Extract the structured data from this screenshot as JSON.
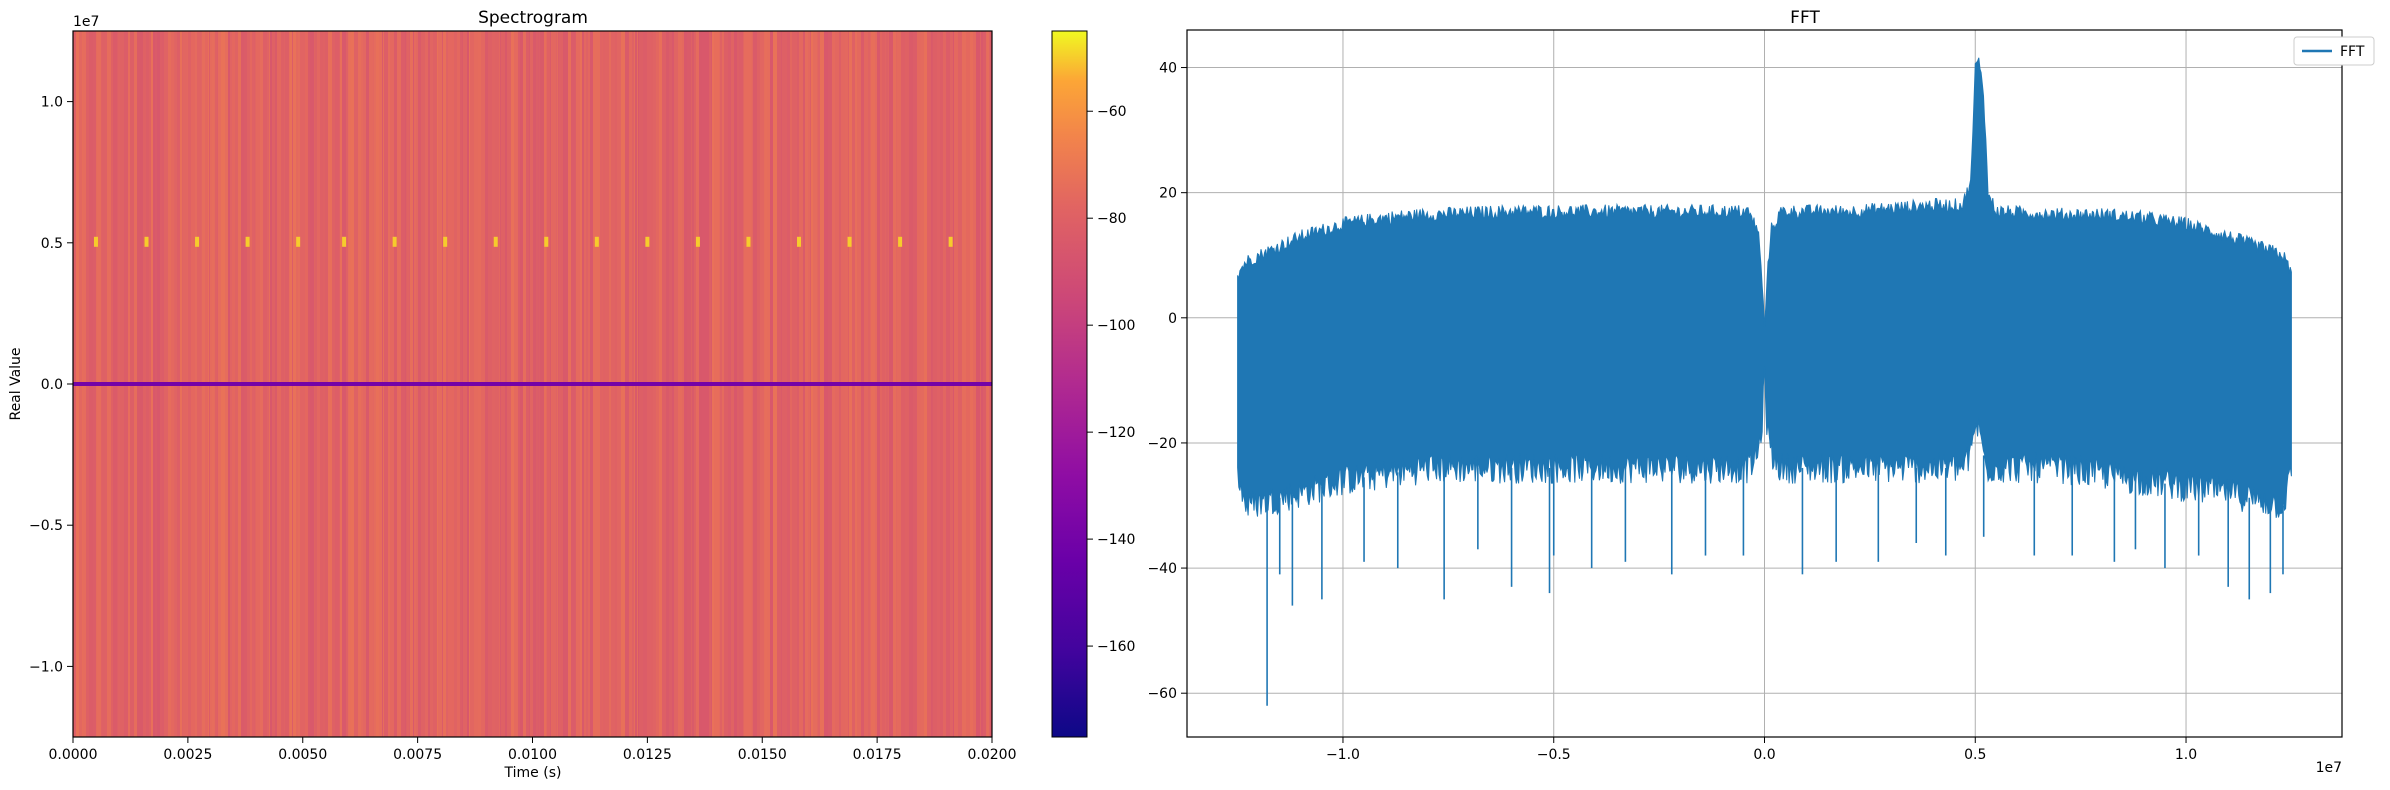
{
  "chart_data": [
    {
      "type": "heatmap",
      "title": "Spectrogram",
      "xlabel": "Time (s)",
      "ylabel": "Real Value",
      "xlim": [
        0.0,
        0.02
      ],
      "ylim": [
        -12500000,
        12500000
      ],
      "x_ticks": [
        0.0,
        0.0025,
        0.005,
        0.0075,
        0.01,
        0.0125,
        0.015,
        0.0175,
        0.02
      ],
      "x_tick_labels": [
        "0.0000",
        "0.0025",
        "0.0050",
        "0.0075",
        "0.0100",
        "0.0125",
        "0.0150",
        "0.0175",
        "0.0200"
      ],
      "y_ticks": [
        -10000000,
        -5000000,
        0,
        5000000,
        10000000
      ],
      "y_tick_labels": [
        "−1.0",
        "−0.5",
        "0.0",
        "0.5",
        "1.0"
      ],
      "y_offset_label": "1e7",
      "grid": false,
      "colormap": "plasma",
      "colorbar": {
        "range": [
          -177,
          -45
        ],
        "ticks": [
          -60,
          -80,
          -100,
          -120,
          -140,
          -160
        ],
        "tick_labels": [
          "−60",
          "−80",
          "−100",
          "−120",
          "−140",
          "−160"
        ]
      },
      "features": {
        "background_level": -82,
        "dc_line": {
          "y": 0,
          "level": -140
        },
        "bright_spots": {
          "y": 5000000,
          "level": -50,
          "times": [
            0.0005,
            0.0016,
            0.0027,
            0.0038,
            0.0049,
            0.0059,
            0.007,
            0.0081,
            0.0092,
            0.0103,
            0.0114,
            0.0125,
            0.0136,
            0.0147,
            0.0158,
            0.0169,
            0.018,
            0.0191
          ]
        }
      }
    },
    {
      "type": "line",
      "title": "FFT",
      "xlabel": "",
      "ylabel": "",
      "xlim": [
        -13700000,
        13700000
      ],
      "ylim": [
        -67,
        46
      ],
      "x_ticks": [
        -10000000,
        -5000000,
        0,
        5000000,
        10000000
      ],
      "x_tick_labels": [
        "−1.0",
        "−0.5",
        "0.0",
        "0.5",
        "1.0"
      ],
      "x_offset_label": "1e7",
      "y_ticks": [
        -60,
        -40,
        -20,
        0,
        20,
        40
      ],
      "y_tick_labels": [
        "−60",
        "−40",
        "−20",
        "0",
        "20",
        "40"
      ],
      "grid": true,
      "legend": {
        "position": "top-right",
        "entries": [
          "FFT"
        ]
      },
      "series": [
        {
          "name": "FFT",
          "color": "#1f77b4",
          "envelope": {
            "x": [
              -12500000,
              -12300000,
              -11000000,
              -10000000,
              -9000000,
              -8000000,
              -6000000,
              -4000000,
              -2000000,
              -400000,
              -150000,
              -50000,
              0,
              50000,
              150000,
              400000,
              2000000,
              4000000,
              4700000,
              4900000,
              5000000,
              5100000,
              5200000,
              5300000,
              5500000,
              7000000,
              8000000,
              9000000,
              10000000,
              11000000,
              12300000,
              12500000
            ],
            "upper": [
              7,
              9,
              13,
              15,
              16,
              16.5,
              17,
              17,
              17,
              17,
              14,
              5,
              -2,
              5,
              14,
              17,
              17,
              18,
              18,
              22,
              40,
              41,
              36,
              20,
              17,
              16.5,
              16.5,
              16,
              15,
              13,
              10,
              7
            ],
            "lower": [
              -25,
              -30,
              -28,
              -26,
              -25,
              -24,
              -24,
              -24,
              -24,
              -24,
              -22,
              -16,
              -10,
              -16,
              -22,
              -24,
              -24,
              -24,
              -24,
              -22,
              -17,
              -18,
              -22,
              -24,
              -24,
              -24,
              -25,
              -26,
              -27,
              -28,
              -30,
              -25
            ]
          },
          "spikes": {
            "x": [
              -11800000,
              -11500000,
              -11200000,
              -10500000,
              -9500000,
              -8700000,
              -7600000,
              -6800000,
              -6000000,
              -5100000,
              -5000000,
              -4100000,
              -3300000,
              -2200000,
              -1400000,
              -500000,
              900000,
              1700000,
              2700000,
              3600000,
              4300000,
              5200000,
              6400000,
              7300000,
              8300000,
              8800000,
              9500000,
              10300000,
              11000000,
              11500000,
              12000000,
              12300000
            ],
            "y": [
              -62,
              -41,
              -46,
              -45,
              -39,
              -40,
              -45,
              -37,
              -43,
              -44,
              -38,
              -40,
              -39,
              -41,
              -38,
              -38,
              -41,
              -39,
              -39,
              -36,
              -38,
              -35,
              -38,
              -38,
              -39,
              -37,
              -40,
              -38,
              -43,
              -45,
              -44,
              -41
            ]
          }
        }
      ]
    }
  ]
}
